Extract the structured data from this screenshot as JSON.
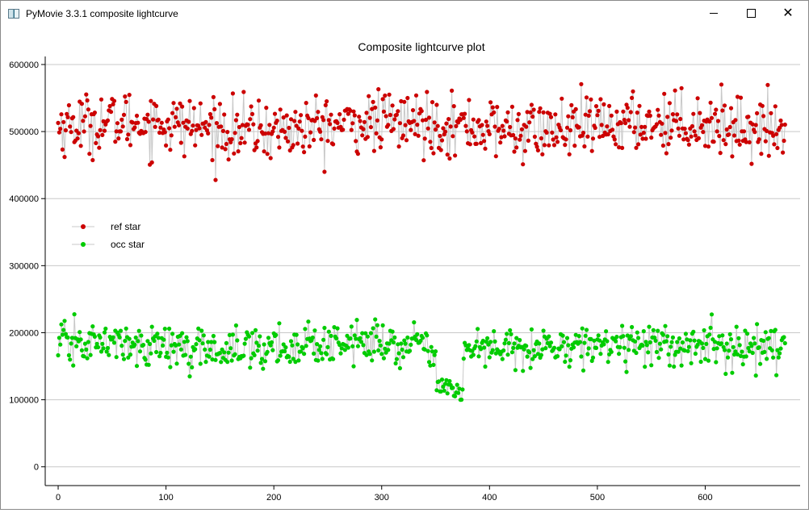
{
  "window": {
    "title": "PyMovie 3.3.1 composite lightcurve",
    "controls": {
      "minimize": "minimize-icon",
      "maximize": "maximize-icon",
      "close": "close-icon"
    }
  },
  "chart_data": {
    "type": "scatter",
    "title": "Composite lightcurve plot",
    "xlabel": "",
    "ylabel": "",
    "xlim": [
      -12,
      688
    ],
    "ylim": [
      -28000,
      612000
    ],
    "x_ticks": [
      0,
      100,
      200,
      300,
      400,
      500,
      600
    ],
    "y_ticks": [
      0,
      100000,
      200000,
      300000,
      400000,
      500000,
      600000
    ],
    "grid": "horizontal",
    "legend_position": "left",
    "colors": {
      "ref": "#cc0000",
      "occ": "#00cc00",
      "line": "#c8c8c8",
      "grid": "#c8c8c8"
    },
    "series": [
      {
        "name": "ref star",
        "color": "#cc0000",
        "mean": 508000,
        "spread": 22000,
        "n": 675
      },
      {
        "name": "occ star",
        "color": "#00cc00",
        "mean": 180000,
        "spread": 15000,
        "n": 675,
        "event": {
          "start_frame": 351,
          "end_frame": 375,
          "level": 118000
        }
      }
    ]
  }
}
